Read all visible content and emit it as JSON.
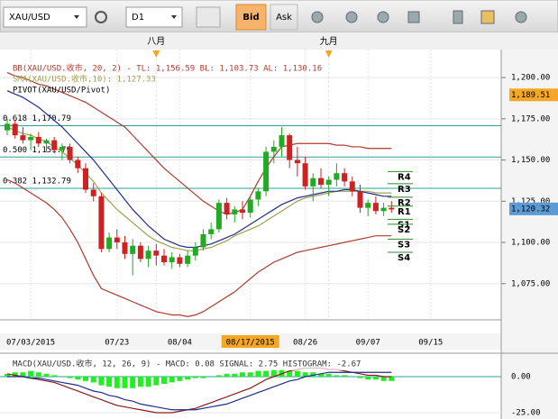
{
  "toolbar": {
    "symbol": "XAU/USD",
    "timeframe": "D1",
    "bid": "Bid",
    "ask": "Ask"
  },
  "chart_data": [
    {
      "type": "candlestick",
      "legend": [
        {
          "text": "BB(XAU/USD.收市, 20, 2) - TL: 1,156.59 BL: 1,103.73 AL: 1,130.16",
          "color": "#b03a2e"
        },
        {
          "text": "SMA(XAU/USD.收市,10): 1,127.33",
          "color": "#a0a050"
        },
        {
          "text": "PIVOT(XAU/USD/Pivot)",
          "color": "#000000"
        }
      ],
      "categories": [
        null,
        null,
        null,
        "07/03/2015",
        null,
        null,
        null,
        null,
        null,
        null,
        null,
        null,
        null,
        null,
        "07/23",
        null,
        null,
        null,
        null,
        null,
        null,
        null,
        "08/04",
        null,
        null,
        null,
        null,
        null,
        null,
        null,
        null,
        "08/17/2015",
        null,
        null,
        null,
        null,
        null,
        null,
        "08/26",
        null,
        null,
        null,
        null,
        null,
        null,
        null,
        "09/07",
        null,
        null,
        null,
        null,
        null,
        null,
        null,
        "09/15",
        null
      ],
      "highlighted_category": 31,
      "month_categories": [
        null,
        null,
        null,
        null,
        null,
        null,
        null,
        null,
        null,
        null,
        null,
        null,
        null,
        null,
        null,
        null,
        null,
        null,
        null,
        "八月",
        null,
        null,
        null,
        null,
        null,
        null,
        null,
        null,
        null,
        null,
        null,
        null,
        null,
        null,
        null,
        null,
        null,
        null,
        null,
        null,
        null,
        "九月",
        null,
        null,
        null,
        null,
        null,
        null,
        null,
        null,
        null,
        null,
        null,
        null,
        null,
        null
      ],
      "open": [
        1168,
        1172,
        1165,
        1162,
        1164,
        1160,
        1162,
        1156,
        1158,
        1150,
        1145,
        1132,
        1128,
        1096,
        1103,
        1100,
        1093,
        1098,
        1090,
        1095,
        1092,
        1088,
        1091,
        1087,
        1092,
        1097,
        1105,
        1108,
        1124,
        1117,
        1120,
        1118,
        1126,
        1131,
        1155,
        1158,
        1165,
        1150,
        1148,
        1134,
        1139,
        1135,
        1138,
        1142,
        1137,
        1131,
        1121,
        1124,
        1119,
        1121,
        null,
        null,
        null,
        null,
        null,
        null
      ],
      "high": [
        1175,
        1174,
        1170,
        1166,
        1167,
        1163,
        1164,
        1160,
        1160,
        1152,
        1148,
        1136,
        1130,
        1106,
        1108,
        1104,
        1102,
        1100,
        1098,
        1099,
        1096,
        1094,
        1093,
        1095,
        1100,
        1108,
        1112,
        1126,
        1127,
        1122,
        1125,
        1128,
        1133,
        1158,
        1162,
        1170,
        1166,
        1158,
        1152,
        1142,
        1145,
        1140,
        1148,
        1145,
        1140,
        1135,
        1126,
        1128,
        1124,
        1125,
        null,
        null,
        null,
        null,
        null,
        null
      ],
      "low": [
        1165,
        1163,
        1160,
        1156,
        1158,
        1155,
        1154,
        1150,
        1148,
        1142,
        1130,
        1125,
        1094,
        1094,
        1096,
        1090,
        1080,
        1088,
        1085,
        1086,
        1086,
        1084,
        1085,
        1085,
        1089,
        1095,
        1102,
        1106,
        1114,
        1112,
        1114,
        1115,
        1122,
        1128,
        1148,
        1152,
        1145,
        1140,
        1132,
        1125,
        1133,
        1128,
        1134,
        1134,
        1128,
        1118,
        1116,
        1117,
        1116,
        1118,
        null,
        null,
        null,
        null,
        null,
        null
      ],
      "close": [
        1172,
        1165,
        1162,
        1164,
        1160,
        1162,
        1156,
        1158,
        1150,
        1145,
        1132,
        1128,
        1096,
        1103,
        1100,
        1093,
        1098,
        1090,
        1095,
        1092,
        1088,
        1091,
        1087,
        1092,
        1097,
        1105,
        1108,
        1124,
        1117,
        1120,
        1118,
        1126,
        1131,
        1155,
        1158,
        1165,
        1150,
        1148,
        1134,
        1139,
        1135,
        1138,
        1142,
        1137,
        1131,
        1121,
        1124,
        1119,
        1121,
        1120,
        null,
        null,
        null,
        null,
        null,
        null
      ],
      "up_color": "#22aa22",
      "down_color": "#cc2222",
      "overlays": [
        {
          "color": "#b03a2e",
          "values": [
            1203,
            1201,
            1200,
            1198,
            1196,
            1195,
            1193,
            1191,
            1189,
            1187,
            1185,
            1182,
            1179,
            1176,
            1173,
            1170,
            1165,
            1160,
            1155,
            1150,
            1145,
            1141,
            1137,
            1133,
            1129,
            1125,
            1122,
            1119,
            1117,
            1118,
            1120,
            1128,
            1137,
            1145,
            1152,
            1158,
            1159,
            1160,
            1160,
            1160,
            1160,
            1160,
            1159,
            1159,
            1158,
            1158,
            1157,
            1157,
            1157,
            1157,
            null,
            null,
            null,
            null,
            null,
            null
          ]
        },
        {
          "color": "#b03a2e",
          "values": [
            1138,
            1136,
            1133,
            1130,
            1127,
            1124,
            1120,
            1115,
            1108,
            1100,
            1090,
            1080,
            1072,
            1070,
            1068,
            1066,
            1064,
            1062,
            1060,
            1058,
            1057,
            1056,
            1056,
            1055,
            1056,
            1058,
            1061,
            1064,
            1067,
            1070,
            1074,
            1078,
            1082,
            1085,
            1088,
            1090,
            1092,
            1094,
            1095,
            1096,
            1097,
            1098,
            1099,
            1100,
            1101,
            1102,
            1103,
            1104,
            1104,
            1104,
            null,
            null,
            null,
            null,
            null,
            null
          ]
        },
        {
          "color": "#a0a050",
          "values": [
            1170,
            1168,
            1166,
            1165,
            1163,
            1161,
            1158,
            1155,
            1151,
            1147,
            1142,
            1137,
            1130,
            1125,
            1120,
            1116,
            1112,
            1108,
            1104,
            1101,
            1099,
            1097,
            1096,
            1095,
            1095,
            1096,
            1097,
            1099,
            1101,
            1104,
            1106,
            1108,
            1110,
            1113,
            1116,
            1119,
            1122,
            1125,
            1127,
            1128,
            1129,
            1130,
            1131,
            1131,
            1131,
            1131,
            1131,
            1130,
            1130,
            1130,
            null,
            null,
            null,
            null,
            null,
            null
          ]
        },
        {
          "color": "#1f2d8c",
          "values": [
            1192,
            1190,
            1188,
            1185,
            1182,
            1178,
            1174,
            1170,
            1165,
            1160,
            1155,
            1150,
            1144,
            1138,
            1132,
            1126,
            1120,
            1115,
            1110,
            1106,
            1102,
            1100,
            1098,
            1097,
            1097,
            1098,
            1099,
            1101,
            1103,
            1105,
            1108,
            1111,
            1114,
            1117,
            1120,
            1123,
            1125,
            1127,
            1128,
            1129,
            1130,
            1131,
            1131,
            1132,
            1132,
            1131,
            1130,
            1129,
            1128,
            1128,
            null,
            null,
            null,
            null,
            null,
            null
          ]
        }
      ],
      "fib_levels": [
        {
          "value": 1170.79,
          "label": "0.618 1,170.79"
        },
        {
          "value": 1151.79,
          "label": "0.500 1,151.79"
        },
        {
          "value": 1132.79,
          "label": "0.382 1,132.79"
        }
      ],
      "fib_color": "#2aa198",
      "pivots": [
        {
          "name": "R4",
          "value": 1143
        },
        {
          "name": "R3",
          "value": 1135.6
        },
        {
          "name": "R2",
          "value": 1127.4
        },
        {
          "name": "R1",
          "value": 1122
        },
        {
          "name": "S1",
          "value": 1114
        },
        {
          "name": "S2",
          "value": 1111
        },
        {
          "name": "S3",
          "value": 1102
        },
        {
          "name": "S4",
          "value": 1094
        }
      ],
      "pivot_color": "#2e8b2e",
      "price_labels": [
        {
          "value": 1189.51,
          "label": "1,189.51",
          "color": "#f5a623"
        },
        {
          "value": 1120.32,
          "label": "1,120.32",
          "color": "#5b9bd5"
        }
      ],
      "ylim": [
        1053,
        1217
      ],
      "yticks": [
        {
          "value": 1075,
          "label": "1,075.00"
        },
        {
          "value": 1100,
          "label": "1,100.00"
        },
        {
          "value": 1125,
          "label": "1,125.00"
        },
        {
          "value": 1150,
          "label": "1,150.00"
        },
        {
          "value": 1175,
          "label": "1,175.00"
        },
        {
          "value": 1200,
          "label": "1,200.00"
        }
      ],
      "grid": true
    },
    {
      "type": "macd",
      "legend": "MACD(XAU/USD.收市, 12, 26, 9) - MACD: 0.08 SIGNAL: 2.75 HISTOGRAM: -2.67",
      "histogram": {
        "color": "#22ee22",
        "values": [
          2,
          3,
          3,
          4,
          3,
          2,
          1,
          0,
          -1,
          -2,
          -3,
          -4,
          -6,
          -7,
          -8,
          -8,
          -8,
          -7,
          -7,
          -6,
          -5,
          -4,
          -3,
          -2,
          -1,
          -1,
          0,
          1,
          2,
          2,
          3,
          3,
          4,
          4,
          5,
          5,
          4,
          4,
          3,
          3,
          2,
          2,
          1,
          1,
          0,
          -1,
          -2,
          -2,
          -3,
          -3,
          null,
          null,
          null,
          null,
          null,
          null
        ]
      },
      "lines": [
        {
          "color": "#8b1a1a",
          "values": [
            2,
            1,
            0,
            -1,
            -2,
            -3,
            -4,
            -6,
            -8,
            -10,
            -12,
            -14,
            -16,
            -18,
            -20,
            -21,
            -22,
            -23,
            -24,
            -25,
            -25,
            -25,
            -24,
            -23,
            -22,
            -20,
            -18,
            -16,
            -14,
            -12,
            -10,
            -8,
            -5,
            -2,
            0,
            2,
            4,
            5,
            6,
            6,
            6,
            5,
            5,
            4,
            3,
            2,
            1,
            1,
            0,
            0,
            null,
            null,
            null,
            null,
            null,
            null
          ]
        },
        {
          "color": "#1f2d8c",
          "values": [
            0,
            0,
            0,
            -1,
            -1,
            -2,
            -3,
            -4,
            -5,
            -6,
            -8,
            -10,
            -11,
            -13,
            -14,
            -16,
            -17,
            -19,
            -20,
            -21,
            -22,
            -23,
            -23,
            -23,
            -23,
            -22,
            -21,
            -20,
            -19,
            -17,
            -15,
            -13,
            -11,
            -9,
            -7,
            -5,
            -3,
            -2,
            0,
            1,
            2,
            3,
            3,
            3,
            3,
            3,
            3,
            3,
            3,
            3,
            null,
            null,
            null,
            null,
            null,
            null
          ]
        }
      ],
      "ylim": [
        -29.4,
        14.4
      ],
      "yticks": [
        {
          "value": -25,
          "label": "-25.00"
        },
        {
          "value": 0,
          "label": "0.00"
        }
      ],
      "grid": true
    }
  ]
}
